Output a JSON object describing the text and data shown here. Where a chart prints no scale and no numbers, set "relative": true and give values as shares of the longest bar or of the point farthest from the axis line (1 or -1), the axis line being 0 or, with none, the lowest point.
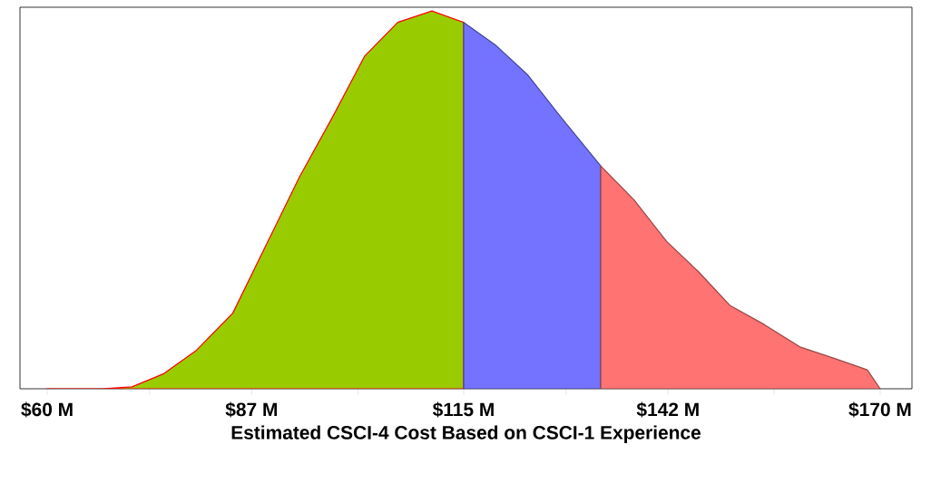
{
  "chart_data": {
    "type": "area",
    "relative": true,
    "xlabel": "Estimated CSCI-4 Cost Based on CSCI-1 Experience",
    "xlim": [
      56.4,
      174.2
    ],
    "xticks": [
      {
        "value": 60,
        "label": "$60 M"
      },
      {
        "value": 73.5,
        "label": null
      },
      {
        "value": 87,
        "label": "$87 M"
      },
      {
        "value": 101,
        "label": null
      },
      {
        "value": 115,
        "label": "$115 M"
      },
      {
        "value": 128.5,
        "label": null
      },
      {
        "value": 142,
        "label": "$142 M"
      },
      {
        "value": 156,
        "label": null
      },
      {
        "value": 170,
        "label": "$170 M"
      }
    ],
    "series": [
      {
        "color": "#99cc00",
        "x": [
          60,
          67.2,
          71.2,
          75.4,
          79.6,
          84.5,
          88.9,
          93.3,
          97.7,
          101.9,
          106.3,
          110.8,
          115
        ],
        "values": [
          0,
          0,
          0.005,
          0.04,
          0.1,
          0.2,
          0.38,
          0.56,
          0.72,
          0.88,
          0.97,
          1.0,
          0.97
        ]
      },
      {
        "color": "#7373ff",
        "x": [
          115,
          119.2,
          123.5,
          127.8,
          133.1
        ],
        "values": [
          0.97,
          0.91,
          0.83,
          0.72,
          0.59
        ]
      },
      {
        "color": "#ff7373",
        "x": [
          133.1,
          137.5,
          141.8,
          146.0,
          150.2,
          154.7,
          159.5,
          164.0,
          168.3,
          170
        ],
        "values": [
          0.59,
          0.5,
          0.39,
          0.31,
          0.22,
          0.17,
          0.11,
          0.08,
          0.05,
          0
        ]
      }
    ]
  }
}
